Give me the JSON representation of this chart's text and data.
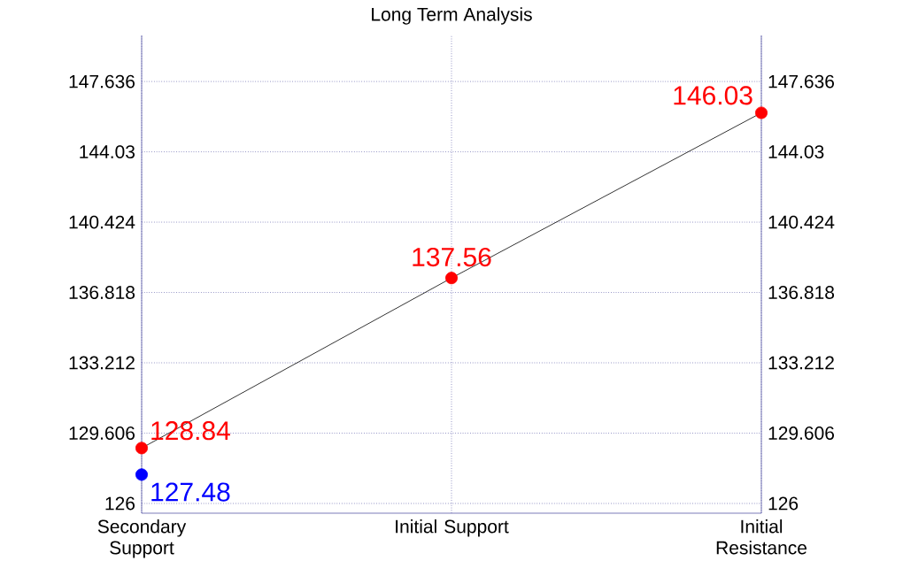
{
  "chart_data": {
    "type": "line",
    "title": "Long Term Analysis",
    "categories": [
      "Secondary Support",
      "Initial Support",
      "Initial Resistance"
    ],
    "series": [
      {
        "color": "#000000",
        "colors": [
          "#ff0000",
          "#ff0000",
          "#ff0000"
        ],
        "values": [
          128.84,
          137.56,
          146.03
        ],
        "marker": "circle"
      },
      {
        "type": "scatter",
        "color": "#0000ff",
        "values": [
          127.48,
          null,
          null
        ],
        "marker": "circle"
      }
    ],
    "ylim": [
      125.5,
      150
    ],
    "yticks": [
      126,
      129.606,
      133.212,
      136.818,
      140.424,
      144.03,
      147.636
    ],
    "y2lim": [
      125.5,
      150
    ],
    "y2ticks": [
      126,
      129.606,
      133.212,
      136.818,
      140.424,
      144.03,
      147.636
    ],
    "grid": true,
    "data_labels": true
  }
}
